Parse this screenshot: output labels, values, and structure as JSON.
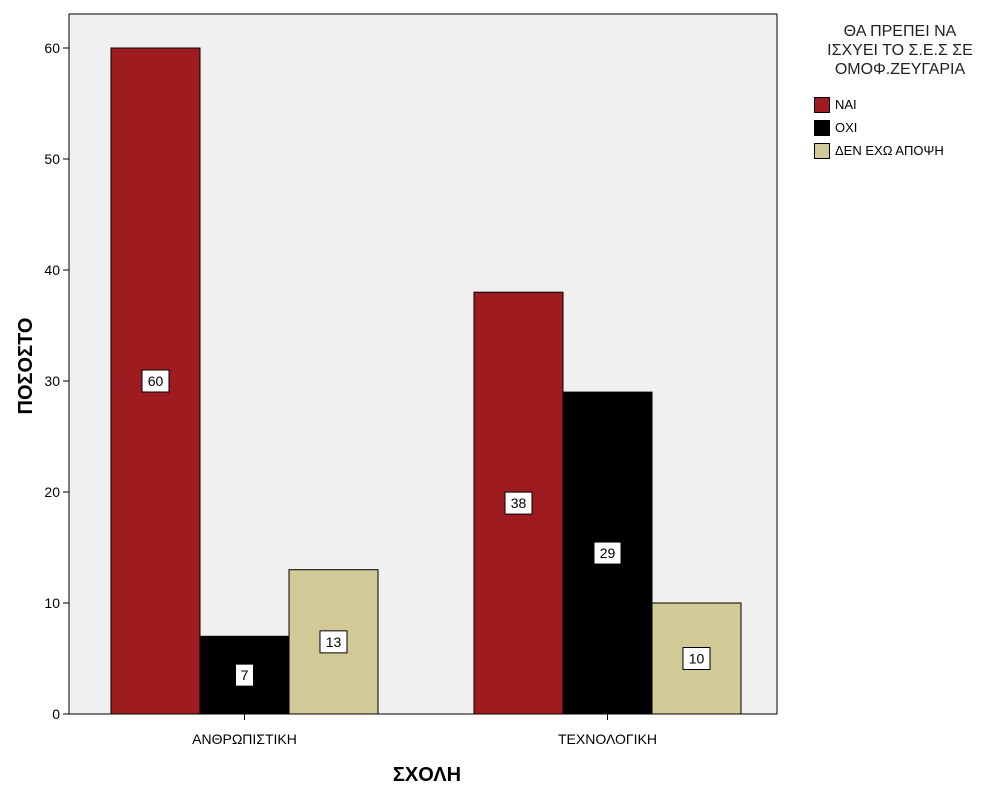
{
  "chart_data": {
    "type": "bar",
    "title": "",
    "xlabel": "ΣΧΟΛΗ",
    "ylabel": "ΠΟΣΟΣΤΟ",
    "categories": [
      "ΑΝΘΡΩΠΙΣΤΙΚΗ",
      "ΤΕΧΝΟΛΟΓΙΚΗ"
    ],
    "series": [
      {
        "name": "ΝΑΙ",
        "values": [
          60,
          38
        ],
        "color": "#9e1b1f"
      },
      {
        "name": "ΟΧΙ",
        "values": [
          7,
          29
        ],
        "color": "#000000"
      },
      {
        "name": "ΔΕΝ ΕΧΩ ΑΠΟΨΗ",
        "values": [
          13,
          10
        ],
        "color": "#d1c996"
      }
    ],
    "ylim": [
      0,
      65
    ],
    "yticks": [
      0,
      10,
      20,
      30,
      40,
      50,
      60
    ],
    "grid": false,
    "plot_background": "#f0f0f0",
    "legend_title": "ΘΑ ΠΡΕΠΕΙ ΝΑ\nΙΣΧΥΕΙ ΤΟ Σ.Ε.Σ ΣΕ\nΟΜΟΦ.ΖΕΥΓΑΡΙΑ",
    "legend_position": "top-right"
  }
}
